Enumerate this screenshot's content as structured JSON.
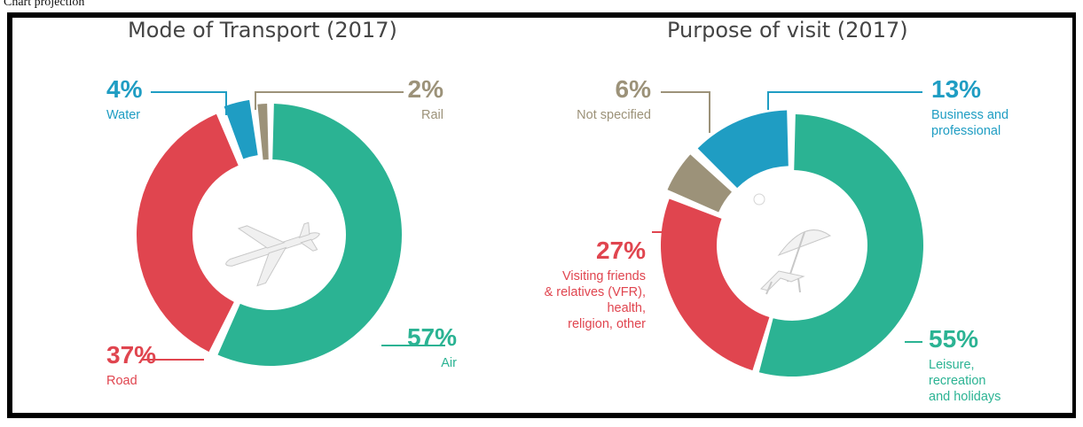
{
  "page_label": "Chart projection",
  "charts": [
    {
      "title": "Mode of Transport (2017)",
      "chart_data": {
        "type": "pie",
        "title": "Mode of Transport (2017)",
        "unit": "%",
        "slices": [
          {
            "label": "Air",
            "value": 57,
            "value_label": "57%",
            "color": "#2bb393"
          },
          {
            "label": "Road",
            "value": 37,
            "value_label": "37%",
            "color": "#e0454f"
          },
          {
            "label": "Water",
            "value": 4,
            "value_label": "4%",
            "color": "#1f9dc3"
          },
          {
            "label": "Rail",
            "value": 2,
            "value_label": "2%",
            "color": "#9c9279"
          }
        ]
      }
    },
    {
      "title": "Purpose of visit (2017)",
      "chart_data": {
        "type": "pie",
        "title": "Purpose of visit (2017)",
        "unit": "%",
        "slices": [
          {
            "label": "Leisure,\nrecreation\nand holidays",
            "value": 55,
            "value_label": "55%",
            "color": "#2bb393"
          },
          {
            "label": "Visiting friends\n& relatives (VFR),\nhealth,\nreligion, other",
            "value": 27,
            "value_label": "27%",
            "color": "#e0454f"
          },
          {
            "label": "Not specified",
            "value": 6,
            "value_label": "6%",
            "color": "#9c9279"
          },
          {
            "label": "Business and\nprofessional",
            "value": 13,
            "value_label": "13%",
            "color": "#1f9dc3"
          }
        ]
      }
    }
  ],
  "icons": [
    "airplane-icon",
    "sunbather-icon"
  ]
}
